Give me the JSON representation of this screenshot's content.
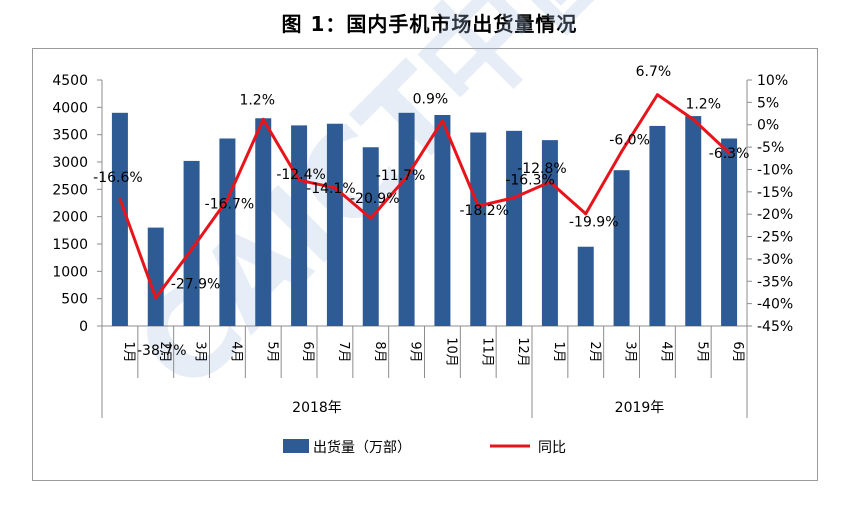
{
  "title": "图 1：国内手机市场出货量情况",
  "watermark": "CAICT中国信通",
  "colors": {
    "bar": "#2e5b94",
    "line": "#e8141b",
    "axis": "#8c8c8c"
  },
  "chart_data": {
    "type": "bar+line",
    "title": "图 1：国内手机市场出货量情况",
    "categories": [
      "1月",
      "2月",
      "3月",
      "4月",
      "5月",
      "6月",
      "7月",
      "8月",
      "9月",
      "10月",
      "11月",
      "12月",
      "1月",
      "2月",
      "3月",
      "4月",
      "5月",
      "6月"
    ],
    "groups": [
      {
        "label": "2018年",
        "count": 12
      },
      {
        "label": "2019年",
        "count": 6
      }
    ],
    "series": [
      {
        "name": "出货量（万部）",
        "type": "bar",
        "axis": "left",
        "values": [
          3900,
          1800,
          3020,
          3430,
          3800,
          3670,
          3700,
          3270,
          3900,
          3860,
          3540,
          3570,
          3400,
          1450,
          2850,
          3660,
          3840,
          3430
        ]
      },
      {
        "name": "同比",
        "type": "line",
        "axis": "right",
        "values": [
          -16.6,
          -38.7,
          -27.9,
          -16.7,
          1.2,
          -12.4,
          -14.1,
          -20.9,
          -11.7,
          0.9,
          -18.2,
          -16.3,
          -12.8,
          -19.9,
          -6.0,
          6.7,
          1.2,
          -6.3
        ],
        "labels": [
          "-16.6%",
          "-38.7%",
          "-27.9%",
          "-16.7%",
          "1.2%",
          "-12.4%",
          "-14.1%",
          "-20.9%",
          "-11.7%",
          "0.9%",
          "-18.2%",
          "-16.3%",
          "-12.8%",
          "-19.9%",
          "-6.0%",
          "6.7%",
          "1.2%",
          "-6.3%"
        ]
      }
    ],
    "y_left": {
      "min": 0,
      "max": 4500,
      "ticks": [
        "0",
        "500",
        "1000",
        "1500",
        "2000",
        "2500",
        "3000",
        "3500",
        "4000",
        "4500"
      ]
    },
    "y_right": {
      "min": -45,
      "max": 10,
      "ticks": [
        "10%",
        "5%",
        "0%",
        "-5%",
        "-10%",
        "-15%",
        "-20%",
        "-25%",
        "-30%",
        "-35%",
        "-40%",
        "-45%"
      ]
    },
    "legend": [
      {
        "name": "出货量（万部）",
        "kind": "bar"
      },
      {
        "name": "同比",
        "kind": "line"
      }
    ]
  }
}
